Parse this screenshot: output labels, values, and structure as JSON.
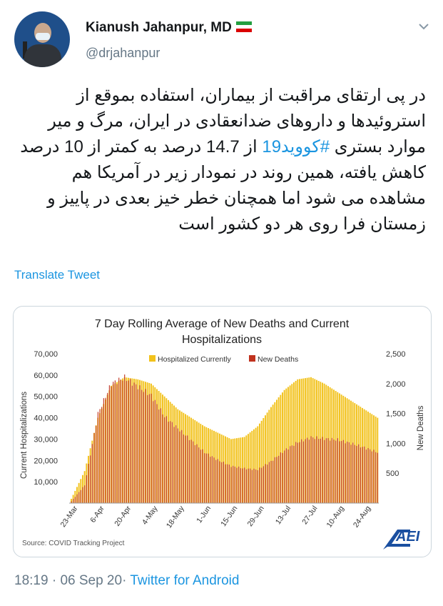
{
  "user": {
    "name": "Kianush Jahanpur, MD",
    "handle": "@drjahanpur"
  },
  "tweet": {
    "text_before_hashtag": "در پی ارتقای مراقبت از بیماران، استفاده بموقع از استروئیدها و داروهای ضدانعقادی در ایران، مرگ و میر موارد بستری ",
    "hashtag": "#کووید19",
    "text_after_hashtag": " از 14.7 درصد به کمتر از 10 درصد کاهش یافته، همین روند در نمودار زیر در آمریکا هم مشاهده می شود اما همچنان خطر خیز بعدی در پاییز و زمستان فرا روی هر دو کشور است",
    "translate_label": "Translate Tweet"
  },
  "meta": {
    "time": "18:19",
    "date": "06 Sep 20",
    "separator": "·",
    "client": "Twitter for Android"
  },
  "colors": {
    "hospitalized": "#f2c21b",
    "deaths": "#c0321e",
    "link": "#1b95e0",
    "aei_blue": "#1a4fa0"
  },
  "icons": {
    "more": "chevron-down-icon",
    "logo": "aei-logo"
  },
  "chart_data": {
    "type": "bar",
    "title": "7 Day Rolling Average of New Deaths and Current Hospitalizations",
    "ylabel_left": "Current Hospitalizations",
    "ylabel_right": "New Deaths",
    "ylim_left": [
      0,
      70000
    ],
    "ylim_right": [
      0,
      2500
    ],
    "yticks_left": [
      "10,000",
      "20,000",
      "30,000",
      "40,000",
      "50,000",
      "60,000",
      "70,000"
    ],
    "yticks_right": [
      "500",
      "1,000",
      "1,500",
      "2,000",
      "2,500"
    ],
    "xticks": [
      "23-Mar",
      "6-Apr",
      "20-Apr",
      "4-May",
      "18-May",
      "1-Jun",
      "15-Jun",
      "29-Jun",
      "13-Jul",
      "27-Jul",
      "10-Aug",
      "24-Aug"
    ],
    "legend_position": "top-center",
    "source": "Source: COVID Tracking Project",
    "series": [
      {
        "name": "Hospitalized Currently",
        "x": [
          "23-Mar",
          "30-Mar",
          "6-Apr",
          "13-Apr",
          "20-Apr",
          "27-Apr",
          "4-May",
          "11-May",
          "18-May",
          "25-May",
          "1-Jun",
          "8-Jun",
          "15-Jun",
          "22-Jun",
          "29-Jun",
          "6-Jul",
          "13-Jul",
          "20-Jul",
          "27-Jul",
          "3-Aug",
          "10-Aug",
          "17-Aug",
          "24-Aug",
          "31-Aug"
        ],
        "values": [
          2000,
          15000,
          40000,
          55000,
          59000,
          58000,
          56000,
          50000,
          44000,
          40000,
          36000,
          33000,
          30000,
          31000,
          36000,
          45000,
          53000,
          58000,
          59000,
          56000,
          52000,
          48000,
          44000,
          40000
        ]
      },
      {
        "name": "New Deaths",
        "x": [
          "23-Mar",
          "30-Mar",
          "6-Apr",
          "13-Apr",
          "20-Apr",
          "27-Apr",
          "4-May",
          "11-May",
          "18-May",
          "25-May",
          "1-Jun",
          "8-Jun",
          "15-Jun",
          "22-Jun",
          "29-Jun",
          "6-Jul",
          "13-Jul",
          "20-Jul",
          "27-Jul",
          "3-Aug",
          "10-Aug",
          "17-Aug",
          "24-Aug",
          "31-Aug"
        ],
        "values": [
          30,
          300,
          1500,
          2000,
          2100,
          1950,
          1800,
          1450,
          1250,
          1050,
          850,
          720,
          620,
          580,
          560,
          700,
          880,
          1020,
          1100,
          1080,
          1060,
          1000,
          930,
          850
        ]
      }
    ],
    "logo_text": "AEI"
  }
}
